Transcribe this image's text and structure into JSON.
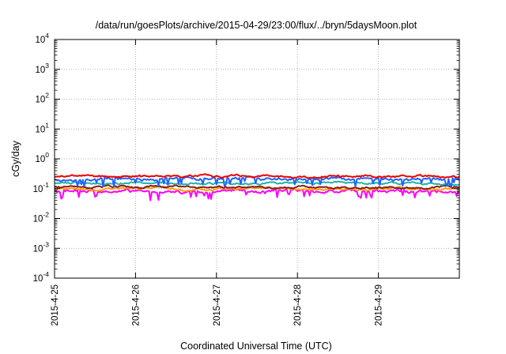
{
  "chart_data": {
    "type": "line",
    "title": "/data/run/goesPlots/archive/2015-04-29/23:00/flux/../bryn/5daysMoon.plot",
    "xlabel": "Coordinated Universal Time (UTC)",
    "ylabel": "cGy/day",
    "yscale": "log",
    "ylim": [
      0.0001,
      10000
    ],
    "xlim": [
      "2015-04-25",
      "2015-04-30"
    ],
    "grid": true,
    "x_tick_labels": [
      "2015-4-25",
      "2015-4-26",
      "2015-4-27",
      "2015-4-28",
      "2015-4-29"
    ],
    "y_ticks": [
      {
        "base": "10",
        "exp": "-4"
      },
      {
        "base": "10",
        "exp": "-3"
      },
      {
        "base": "10",
        "exp": "-2"
      },
      {
        "base": "10",
        "exp": "-1"
      },
      {
        "base": "10",
        "exp": "0"
      },
      {
        "base": "10",
        "exp": "1"
      },
      {
        "base": "10",
        "exp": "2"
      },
      {
        "base": "10",
        "exp": "3"
      },
      {
        "base": "10",
        "exp": "4"
      }
    ],
    "series": [
      {
        "color": "#ff00ff",
        "base": 0.082,
        "noise": 0.12,
        "dips": true
      },
      {
        "color": "#ffa000",
        "base": 0.096,
        "noise": 0.04,
        "dips": false
      },
      {
        "color": "#8b1a1a",
        "base": 0.112,
        "noise": 0.04,
        "dips": false
      },
      {
        "color": "#20b2aa",
        "base": 0.152,
        "noise": 0.05,
        "dips": false
      },
      {
        "color": "#1e64ff",
        "base": 0.215,
        "noise": 0.1,
        "dips": true
      },
      {
        "color": "#ee0000",
        "base": 0.262,
        "noise": 0.05,
        "dips": false
      }
    ]
  }
}
